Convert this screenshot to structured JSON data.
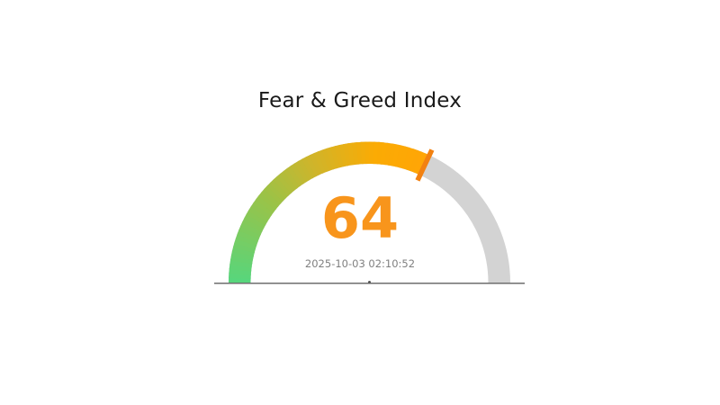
{
  "chart_data": {
    "type": "gauge",
    "title": "Fear & Greed Index",
    "value": 64,
    "value_label": "64",
    "min": 0,
    "max": 100,
    "timestamp": "2025-10-03 02:10:52",
    "title_color": "#1a1a1a",
    "value_color": "#f8951c",
    "timestamp_color": "#808080",
    "gauge": {
      "track_color": "#d3d3d3",
      "needle_tick_color": "#f28111",
      "baseline_color": "#6e6e6e",
      "center_dot_color": "#555555",
      "gradient_stops": [
        {
          "pos": 0.0,
          "color": "#56d67d"
        },
        {
          "pos": 0.35,
          "color": "#9cc246"
        },
        {
          "pos": 0.55,
          "color": "#cdb52c"
        },
        {
          "pos": 0.8,
          "color": "#fbab04"
        },
        {
          "pos": 1.0,
          "color": "#ffa506"
        }
      ]
    }
  }
}
